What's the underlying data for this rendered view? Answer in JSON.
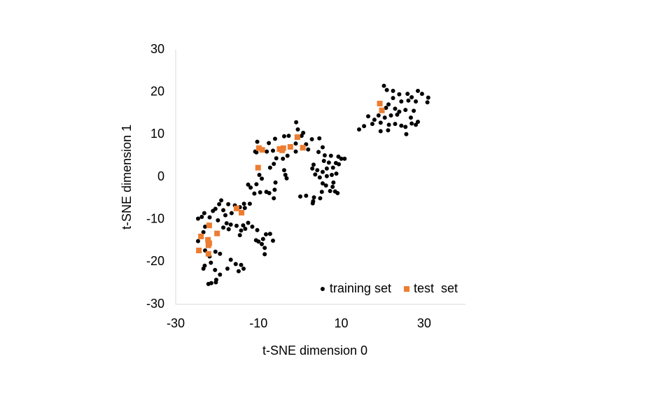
{
  "chart_data": {
    "type": "scatter",
    "xlabel": "t-SNE dimension 0",
    "ylabel": "t-SNE dimension 1",
    "xlim": [
      -30,
      40
    ],
    "xticks": [
      -30,
      -10,
      10,
      30
    ],
    "ylim": [
      -30,
      30
    ],
    "yticks": [
      -30,
      -20,
      -10,
      0,
      10,
      20,
      30
    ],
    "grid": false,
    "legend": "lower right",
    "series": [
      {
        "name": "training set",
        "color": "#000000",
        "marker": "circle",
        "x": [
          20.3,
          21,
          22.5,
          24,
          26,
          27,
          28.5,
          29.5,
          31,
          30.8,
          28,
          26.2,
          24.5,
          22.5,
          21.4,
          23,
          20.8,
          24,
          25.5,
          27.5,
          22,
          23.5,
          20.5,
          19,
          18,
          16.5,
          17.5,
          19.5,
          21.5,
          23,
          24.5,
          25.5,
          27,
          28,
          28.5,
          26.8,
          25.7,
          21.3,
          19.5,
          15.5,
          14.3,
          -0.9,
          -0.5,
          0.8,
          -2.7,
          -3.8,
          -6,
          -7.5,
          -10.3,
          -10.8,
          -10.5,
          -8,
          -6.5,
          -5.7,
          -4.1,
          -3,
          -1,
          1.5,
          2,
          -6.3,
          -7.2,
          -3.8,
          -3.5,
          -3.2,
          -9.2,
          -9.8,
          -5.9,
          -10.5,
          -12.5,
          -11,
          -9.6,
          -7.4,
          -6.1,
          -6.3,
          -8.1,
          -11.9,
          0.1,
          -1,
          0.4,
          2.9,
          4.7,
          5.5,
          4.5,
          6,
          7.5,
          9.3,
          10,
          10.8,
          5.8,
          7,
          8.7,
          9.4,
          3.3,
          3,
          4.2,
          5.5,
          6.5,
          8,
          3.7,
          4.8,
          6.5,
          7.7,
          8.8,
          5.5,
          6.3,
          7.9,
          8.5,
          7.3,
          9.1,
          5.3,
          3.4,
          1.5,
          3.2,
          3.1,
          4.9,
          8.1,
          -19,
          -19.5,
          -20.4,
          -21,
          -18.5,
          -17.3,
          -15.7,
          -14.5,
          -13.3,
          -12.1,
          -13.5,
          -16.5,
          -18,
          -19.8,
          -21.8,
          -23.1,
          -24.6,
          -23.7,
          -17.7,
          -18.5,
          -16.7,
          -15.3,
          -13.7,
          -12.5,
          -13.2,
          -14.2,
          -14.5,
          -17.2,
          -10.3,
          -11.5,
          -8.2,
          -7.2,
          -8.9,
          -6.5,
          -10,
          -9.2,
          -8.5,
          -8.5,
          -10.6,
          -22.9,
          -23.3,
          -24.6,
          -22.9,
          -20.4,
          -19.3,
          -21.8,
          -23,
          -21.5,
          -23.3,
          -20.5,
          -19.3,
          -17.5,
          -16.7,
          -15.5,
          -14.2,
          -13.6,
          -14.8,
          -22.1,
          -21.4,
          -20.3,
          -20.2
        ],
        "values": [
          21.5,
          20.5,
          20.3,
          19.5,
          19.6,
          18.8,
          20.3,
          19.6,
          18.7,
          17.6,
          17.8,
          18,
          17.8,
          18.6,
          17.1,
          16.1,
          16.3,
          15.4,
          15.8,
          15.6,
          14.5,
          14.7,
          14,
          14.5,
          13.5,
          14.3,
          12.5,
          12.8,
          12.3,
          12.5,
          12.1,
          11.8,
          12.6,
          12.3,
          13,
          14,
          10.1,
          11,
          10.8,
          12,
          11.2,
          12.9,
          11.2,
          10.4,
          9.7,
          9.6,
          9,
          8,
          8.3,
          6,
          5.8,
          6,
          6.2,
          4.4,
          4.3,
          5,
          6,
          7.7,
          6.5,
          3.1,
          2.2,
          1.6,
          0.5,
          -0.3,
          -0.4,
          0.5,
          -1.3,
          -1.7,
          -1.8,
          -3.9,
          -3.6,
          -3.8,
          -3,
          -5,
          -3.5,
          -2.5,
          -4.6,
          7.9,
          9.7,
          8.9,
          9.1,
          7,
          5.9,
          5.1,
          5,
          4.8,
          4.3,
          4.3,
          3.8,
          3.4,
          3.3,
          3,
          2.9,
          2,
          1.6,
          1.2,
          2,
          2.2,
          0.6,
          -0.1,
          0.2,
          0.5,
          0.8,
          -1.5,
          -2,
          -2.3,
          -3.4,
          -3.3,
          -3.8,
          -3.5,
          -4.8,
          -4.4,
          -5.7,
          -6.2,
          -5,
          -1.3,
          -5.5,
          -6.4,
          -7.5,
          -8,
          -7.8,
          -6.4,
          -6.7,
          -7.1,
          -7.3,
          -6.3,
          -6.3,
          -8.5,
          -9,
          -10.2,
          -9.5,
          -8.5,
          -9.8,
          -9.4,
          -10.9,
          -11.9,
          -11.2,
          -11.5,
          -11.4,
          -10.8,
          -12.2,
          -12.6,
          -13.7,
          -12.3,
          -12.5,
          -11.7,
          -13.5,
          -13.4,
          -14.6,
          -15,
          -15.2,
          -15.8,
          -16.7,
          -18.2,
          -14.9,
          -11.7,
          -13,
          -15.1,
          -17.3,
          -17.6,
          -18.1,
          -18.7,
          -20.9,
          -20.2,
          -21.6,
          -21.9,
          -23,
          -21.6,
          -19.5,
          -20.5,
          -20.7,
          -21.6,
          -22.2,
          -25.2,
          -25,
          -24.8,
          -24.2
        ]
      },
      {
        "name": "test  set",
        "color": "#ed7d31",
        "marker": "square",
        "x": [
          19.3,
          19.8,
          -0.6,
          0.7,
          -4,
          -2.3,
          -4.9,
          -4.3,
          -9.9,
          -9.1,
          -10.1,
          -15.3,
          -14.1,
          -23.9,
          -21.9,
          -20,
          -22.2,
          -21.9,
          -24.4,
          -22.1,
          -22.1
        ],
        "values": [
          17.3,
          15.7,
          9.4,
          6.9,
          6.8,
          7.1,
          6.6,
          6.3,
          6.8,
          6.4,
          2.2,
          -7.4,
          -8.4,
          -14,
          -11.4,
          -13.3,
          -14.8,
          -15.6,
          -17.3,
          -18.1,
          -16.1
        ]
      }
    ]
  }
}
